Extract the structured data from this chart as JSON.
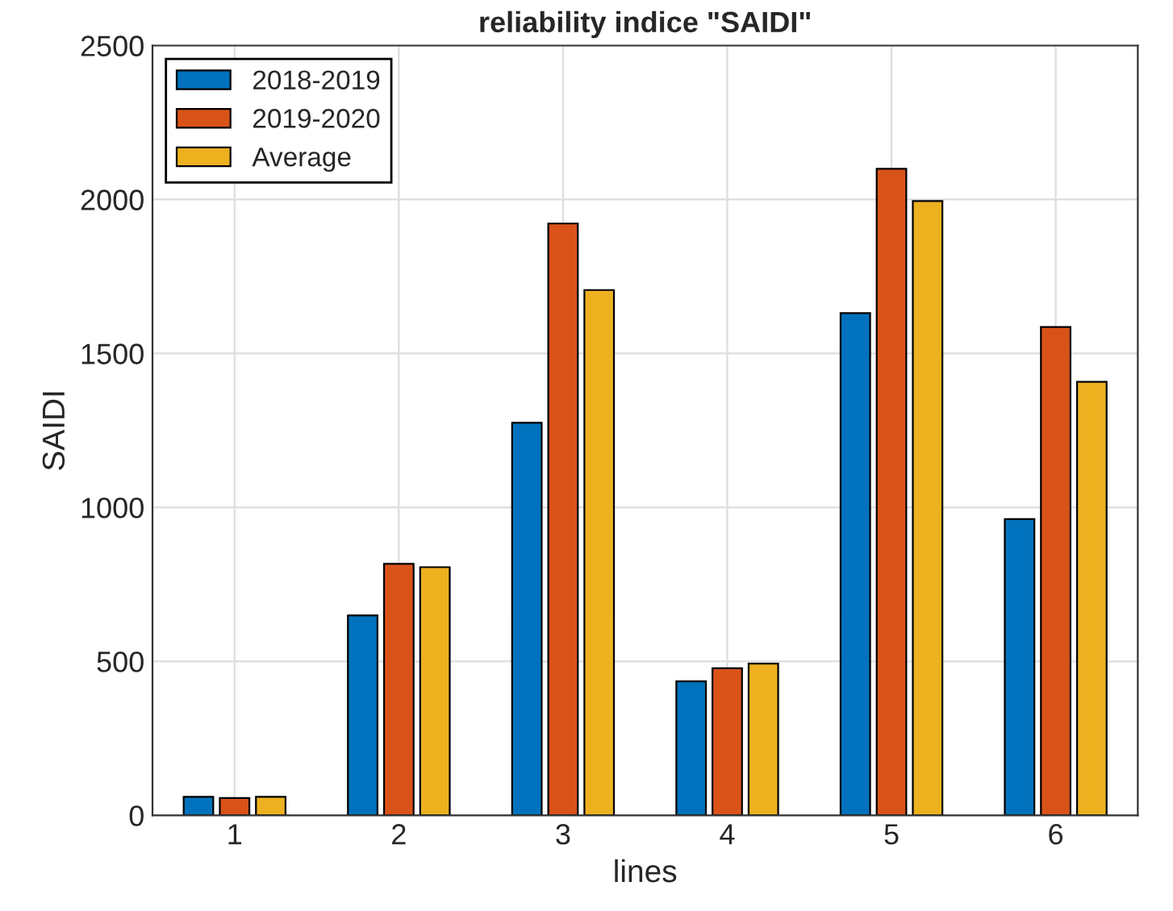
{
  "chart_data": {
    "type": "bar",
    "title": "reliability indice \"SAIDI\"",
    "xlabel": "lines",
    "ylabel": "SAIDI",
    "categories": [
      "1",
      "2",
      "3",
      "4",
      "5",
      "6"
    ],
    "series": [
      {
        "name": "2018-2019",
        "color": "#0072bd",
        "values": [
          60,
          649,
          1275,
          435,
          1631,
          962
        ]
      },
      {
        "name": "2019-2020",
        "color": "#d95319",
        "values": [
          56,
          817,
          1922,
          478,
          2100,
          1586
        ]
      },
      {
        "name": "Average",
        "color": "#edb120",
        "values": [
          60,
          806,
          1706,
          493,
          1995,
          1408
        ]
      }
    ],
    "ylim": [
      0,
      2500
    ],
    "yticks": [
      0,
      500,
      1000,
      1500,
      2000,
      2500
    ],
    "grid": true,
    "legend": "top left"
  }
}
